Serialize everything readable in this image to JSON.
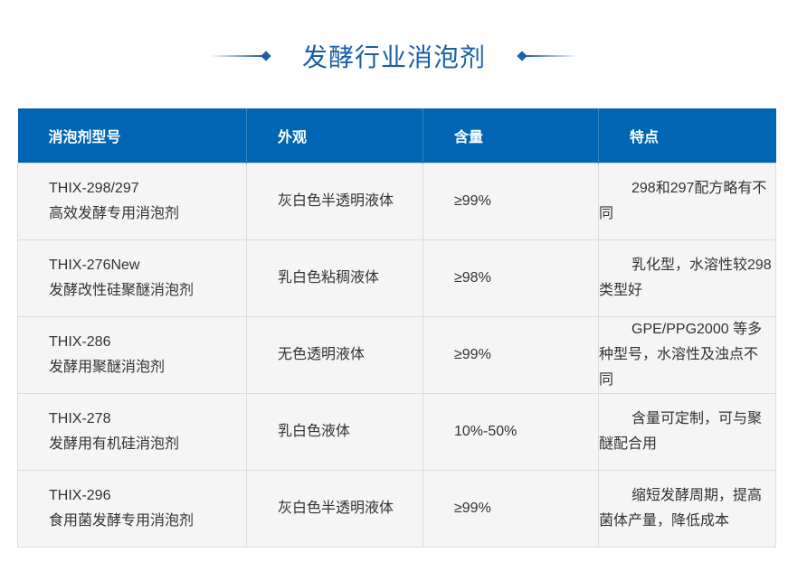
{
  "title": "发酵行业消泡剂",
  "colors": {
    "accent": "#0066b3",
    "title": "#1a5fa8",
    "row_bg": "#f5f5f5"
  },
  "table": {
    "headers": [
      "消泡剂型号",
      "外观",
      "含量",
      "特点"
    ],
    "rows": [
      {
        "model": "THIX-298/297",
        "name": "高效发酵专用消泡剂",
        "appearance": "灰白色半透明液体",
        "content": "≥99%",
        "feature": "298和297配方略有不同"
      },
      {
        "model": "THIX-276New",
        "name": "发酵改性硅聚醚消泡剂",
        "appearance": "乳白色粘稠液体",
        "content": "≥98%",
        "feature": "乳化型，水溶性较298 类型好"
      },
      {
        "model": "THIX-286",
        "name": "发酵用聚醚消泡剂",
        "appearance": "无色透明液体",
        "content": "≥99%",
        "feature": "GPE/PPG2000 等多种型号，水溶性及浊点不同"
      },
      {
        "model": "THIX-278",
        "name": "发酵用有机硅消泡剂",
        "appearance": "乳白色液体",
        "content": "10%-50%",
        "feature": "含量可定制，可与聚醚配合用"
      },
      {
        "model": "THIX-296",
        "name": "食用菌发酵专用消泡剂",
        "appearance": "灰白色半透明液体",
        "content": "≥99%",
        "feature": "缩短发酵周期，提高菌体产量，降低成本"
      }
    ]
  }
}
